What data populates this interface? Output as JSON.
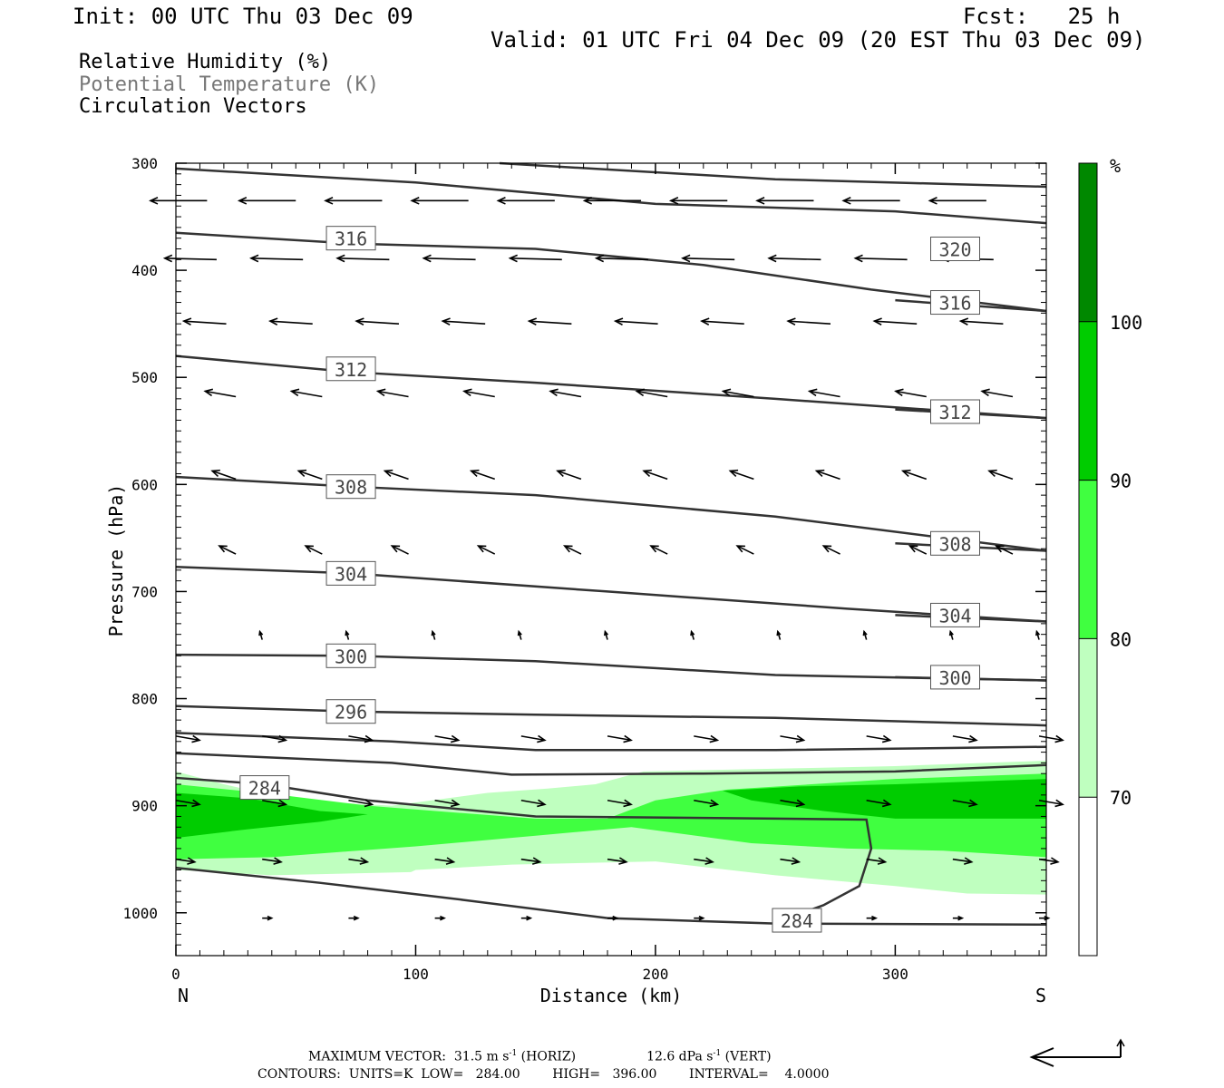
{
  "header": {
    "init": "Init: 00 UTC Thu 03 Dec 09",
    "fcst": "Fcst:   25 h",
    "valid": "Valid: 01 UTC Fri 04 Dec 09 (20 EST Thu 03 Dec 09)"
  },
  "fields": [
    {
      "text": "Relative Humidity (%)",
      "color": "#000000"
    },
    {
      "text": "Potential Temperature (K)",
      "color": "#777777"
    },
    {
      "text": "Circulation Vectors",
      "color": "#000000"
    }
  ],
  "footer": {
    "line1_a": "MAXIMUM VECTOR:  31.5 m s",
    "line1_b": "-1",
    "line1_c": " (HORIZ)",
    "line1_d": "12.6 dPa s",
    "line1_e": "-1",
    "line1_f": " (VERT)",
    "line2": "CONTOURS:  UNITS=K  LOW=   284.00        HIGH=   396.00        INTERVAL=    4.0000"
  },
  "colors": {
    "rh70": "#bfffbf",
    "rh80": "#40ff40",
    "rh90": "#00cc00",
    "rh100": "#008800",
    "contour": "#333333"
  },
  "chart_data": {
    "type": "cross-section",
    "xlabel": "Distance (km)",
    "ylabel": "Pressure (hPa)",
    "xlim": [
      0,
      363
    ],
    "ylim": [
      1040,
      300
    ],
    "x_ticks": [
      0,
      100,
      200,
      300
    ],
    "y_ticks": [
      300,
      400,
      500,
      600,
      700,
      800,
      900,
      1000
    ],
    "x_end_labels": {
      "left": "N",
      "right": "S"
    },
    "colorbar": {
      "unit": "%",
      "levels": [
        70,
        80,
        90,
        100
      ],
      "colors": [
        "#ffffff",
        "#bfffbf",
        "#40ff40",
        "#00cc00",
        "#008800"
      ]
    },
    "rh_shading": [
      {
        "level": 70,
        "points": [
          [
            0,
            868
          ],
          [
            20,
            880
          ],
          [
            50,
            895
          ],
          [
            90,
            900
          ],
          [
            130,
            888
          ],
          [
            155,
            884
          ],
          [
            175,
            880
          ],
          [
            195,
            868
          ],
          [
            260,
            865
          ],
          [
            300,
            863
          ],
          [
            363,
            858
          ],
          [
            363,
            983
          ],
          [
            330,
            982
          ],
          [
            300,
            975
          ],
          [
            250,
            965
          ],
          [
            200,
            952
          ],
          [
            140,
            955
          ],
          [
            100,
            960
          ],
          [
            98,
            962
          ],
          [
            40,
            965
          ],
          [
            0,
            960
          ]
        ]
      },
      {
        "level": 80,
        "points": [
          [
            0,
            880
          ],
          [
            40,
            889
          ],
          [
            80,
            900
          ],
          [
            120,
            907
          ],
          [
            150,
            912
          ],
          [
            180,
            912
          ],
          [
            200,
            895
          ],
          [
            230,
            885
          ],
          [
            300,
            875
          ],
          [
            363,
            870
          ],
          [
            363,
            948
          ],
          [
            320,
            942
          ],
          [
            280,
            940
          ],
          [
            240,
            935
          ],
          [
            190,
            920
          ],
          [
            150,
            928
          ],
          [
            100,
            938
          ],
          [
            70,
            943
          ],
          [
            40,
            948
          ],
          [
            0,
            950
          ]
        ]
      },
      {
        "level": 90,
        "points": [
          [
            0,
            888
          ],
          [
            30,
            893
          ],
          [
            60,
            905
          ],
          [
            80,
            908
          ],
          [
            60,
            915
          ],
          [
            30,
            922
          ],
          [
            0,
            930
          ]
        ]
      },
      {
        "level": 90,
        "points": [
          [
            228,
            886
          ],
          [
            260,
            882
          ],
          [
            300,
            880
          ],
          [
            363,
            875
          ],
          [
            363,
            912
          ],
          [
            300,
            912
          ],
          [
            270,
            905
          ],
          [
            240,
            895
          ]
        ]
      }
    ],
    "theta_contours": [
      {
        "label": "320",
        "points": [
          [
            0,
            305
          ],
          [
            100,
            318
          ],
          [
            200,
            338
          ],
          [
            300,
            345
          ],
          [
            363,
            356
          ]
        ],
        "label_at": [
          325,
          380
        ]
      },
      {
        "label": "",
        "points": [
          [
            135,
            300
          ],
          [
            250,
            315
          ],
          [
            363,
            322
          ]
        ],
        "label_at": null
      },
      {
        "label": "316",
        "points": [
          [
            0,
            365
          ],
          [
            73,
            375
          ],
          [
            150,
            380
          ],
          [
            220,
            395
          ],
          [
            290,
            418
          ],
          [
            363,
            438
          ]
        ],
        "label_at": [
          73,
          370
        ]
      },
      {
        "label": "316",
        "points": [
          [
            300,
            428
          ],
          [
            363,
            438
          ]
        ],
        "label_at": [
          325,
          430
        ]
      },
      {
        "label": "312",
        "points": [
          [
            0,
            480
          ],
          [
            73,
            495
          ],
          [
            150,
            505
          ],
          [
            250,
            520
          ],
          [
            363,
            538
          ]
        ],
        "label_at": [
          73,
          492
        ]
      },
      {
        "label": "312",
        "points": [
          [
            300,
            530
          ],
          [
            363,
            538
          ]
        ],
        "label_at": [
          325,
          532
        ]
      },
      {
        "label": "308",
        "points": [
          [
            0,
            593
          ],
          [
            73,
            602
          ],
          [
            150,
            610
          ],
          [
            250,
            630
          ],
          [
            363,
            662
          ]
        ],
        "label_at": [
          73,
          602
        ]
      },
      {
        "label": "308",
        "points": [
          [
            300,
            655
          ],
          [
            363,
            662
          ]
        ],
        "label_at": [
          325,
          655
        ]
      },
      {
        "label": "304",
        "points": [
          [
            0,
            677
          ],
          [
            73,
            683
          ],
          [
            180,
            700
          ],
          [
            280,
            716
          ],
          [
            363,
            728
          ]
        ],
        "label_at": [
          73,
          683
        ]
      },
      {
        "label": "304",
        "points": [
          [
            300,
            722
          ],
          [
            363,
            728
          ]
        ],
        "label_at": [
          325,
          722
        ]
      },
      {
        "label": "300",
        "points": [
          [
            0,
            759
          ],
          [
            73,
            760
          ],
          [
            150,
            765
          ],
          [
            250,
            778
          ],
          [
            363,
            783
          ]
        ],
        "label_at": [
          73,
          760
        ]
      },
      {
        "label": "300",
        "points": [
          [
            300,
            780
          ],
          [
            363,
            783
          ]
        ],
        "label_at": [
          325,
          780
        ]
      },
      {
        "label": "296",
        "points": [
          [
            0,
            807
          ],
          [
            73,
            812
          ],
          [
            150,
            815
          ],
          [
            250,
            818
          ],
          [
            363,
            825
          ]
        ],
        "label_at": [
          73,
          812
        ]
      },
      {
        "label": "",
        "points": [
          [
            0,
            832
          ],
          [
            90,
            840
          ],
          [
            150,
            848
          ],
          [
            250,
            848
          ],
          [
            363,
            845
          ]
        ],
        "label_at": null
      },
      {
        "label": "",
        "points": [
          [
            0,
            851
          ],
          [
            90,
            860
          ],
          [
            140,
            871
          ],
          [
            220,
            870
          ],
          [
            300,
            868
          ],
          [
            363,
            862
          ]
        ],
        "label_at": null
      },
      {
        "label": "284",
        "points": [
          [
            0,
            874
          ],
          [
            37,
            880
          ],
          [
            80,
            895
          ],
          [
            150,
            910
          ],
          [
            250,
            912
          ],
          [
            288,
            913
          ],
          [
            290,
            940
          ],
          [
            285,
            975
          ],
          [
            270,
            993
          ],
          [
            260,
            1001
          ]
        ],
        "label_at": [
          37,
          883
        ]
      },
      {
        "label": "284",
        "points": [
          [
            262,
            1001
          ]
        ],
        "label_at": [
          259,
          1007
        ]
      },
      {
        "label": "",
        "points": [
          [
            0,
            958
          ],
          [
            60,
            972
          ],
          [
            120,
            988
          ],
          [
            180,
            1005
          ],
          [
            250,
            1010
          ],
          [
            363,
            1011
          ]
        ],
        "label_at": null
      }
    ],
    "vectors": [
      {
        "p": 335,
        "u": -24,
        "w": 0,
        "x": [
          13,
          50,
          86,
          122,
          158,
          194,
          230,
          266,
          302,
          338
        ]
      },
      {
        "p": 390,
        "u": -22,
        "w": -0.5,
        "x": [
          17,
          53,
          89,
          125,
          161,
          197,
          233,
          269,
          305,
          341
        ]
      },
      {
        "p": 450,
        "u": -18,
        "w": -1,
        "x": [
          21,
          57,
          93,
          129,
          165,
          201,
          237,
          273,
          309,
          345
        ]
      },
      {
        "p": 518,
        "u": -13,
        "w": -2,
        "x": [
          25,
          61,
          97,
          133,
          169,
          205,
          241,
          277,
          313,
          349
        ]
      },
      {
        "p": 595,
        "u": -10,
        "w": -3,
        "x": [
          25,
          61,
          97,
          133,
          169,
          205,
          241,
          277,
          313,
          349
        ]
      },
      {
        "p": 665,
        "u": -7,
        "w": -3,
        "x": [
          25,
          61,
          97,
          133,
          169,
          205,
          241,
          277,
          313,
          349
        ]
      },
      {
        "p": 745,
        "u": -1,
        "w": -3,
        "x": [
          36,
          72,
          108,
          144,
          180,
          216,
          252,
          288,
          324,
          360
        ]
      },
      {
        "p": 835,
        "u": 10,
        "w": 1.5,
        "x": [
          0,
          36,
          72,
          108,
          144,
          180,
          216,
          252,
          288,
          324,
          360
        ]
      },
      {
        "p": 895,
        "u": 10,
        "w": 1.5,
        "x": [
          0,
          36,
          72,
          108,
          144,
          180,
          216,
          252,
          288,
          324,
          360
        ]
      },
      {
        "p": 950,
        "u": 8,
        "w": 1,
        "x": [
          0,
          36,
          72,
          108,
          144,
          180,
          216,
          252,
          288,
          324,
          360
        ]
      },
      {
        "p": 1005,
        "u": 4,
        "w": 0,
        "x": [
          36,
          72,
          108,
          144,
          180,
          216,
          252,
          288,
          324,
          360
        ]
      }
    ]
  }
}
